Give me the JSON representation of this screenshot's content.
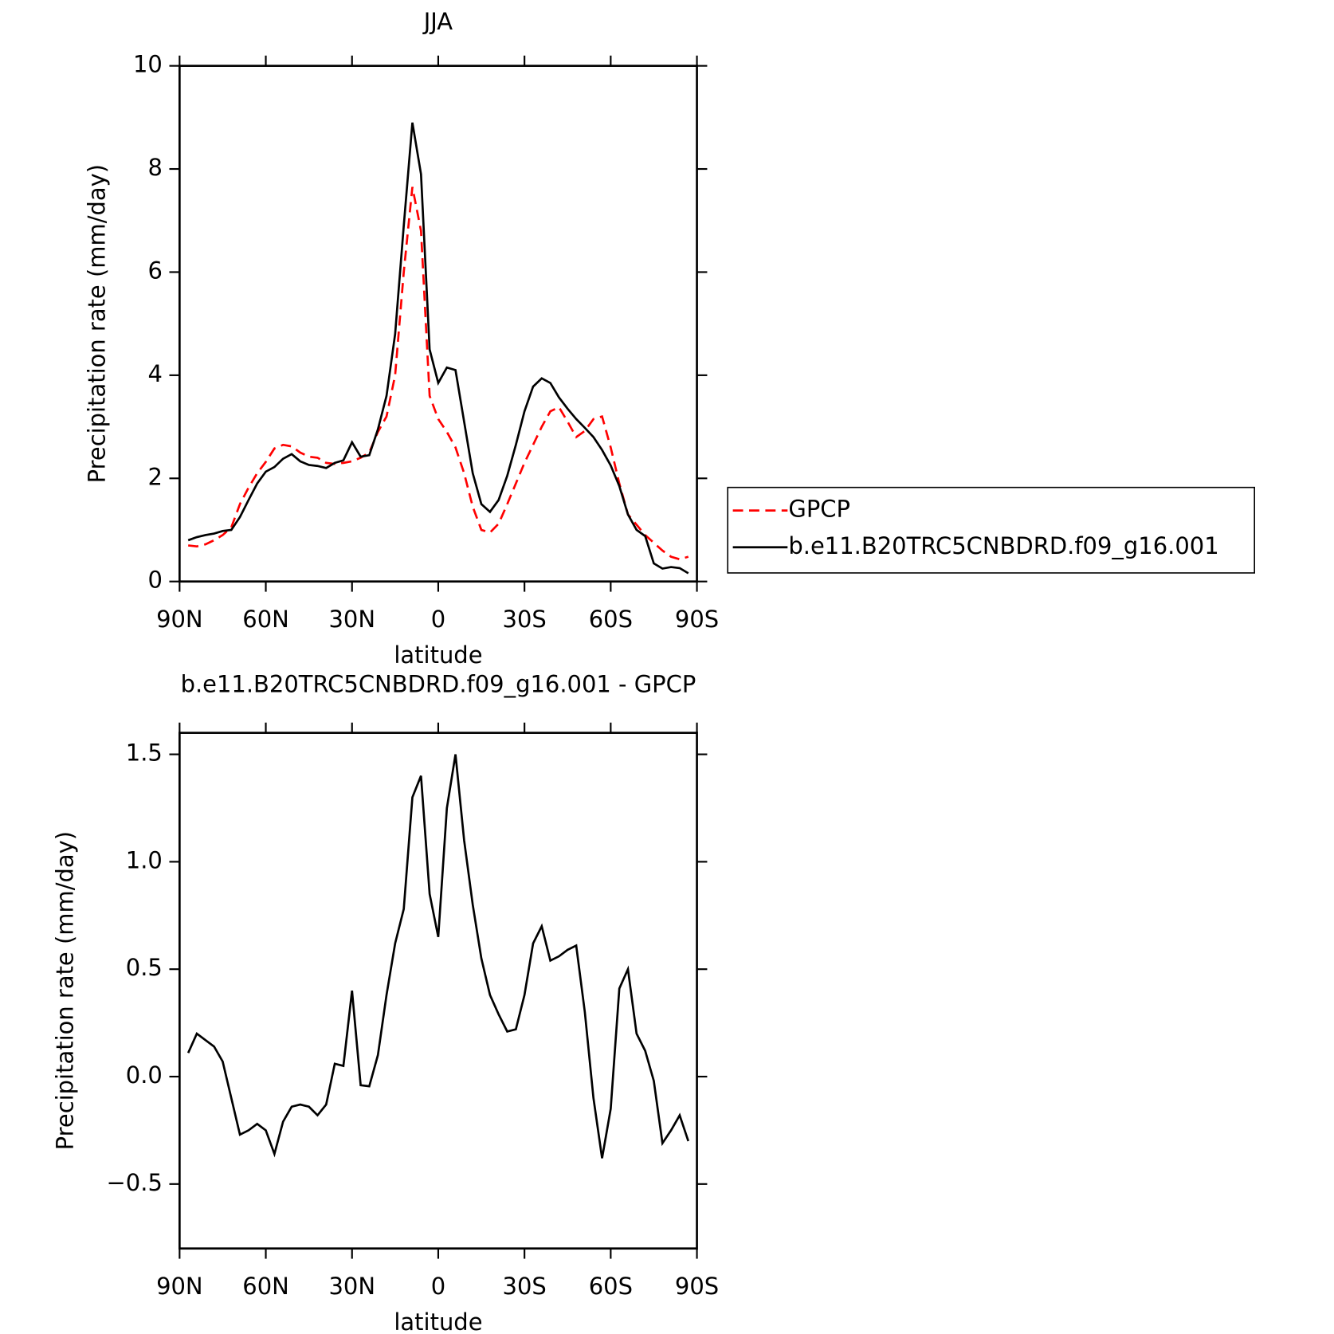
{
  "chart_data": [
    {
      "type": "line",
      "title": "JJA",
      "xlabel": "latitude",
      "ylabel": "Precipitation rate (mm/day)",
      "x": [
        87,
        84,
        81,
        78,
        75,
        72,
        69,
        66,
        63,
        60,
        57,
        54,
        51,
        48,
        45,
        42,
        39,
        36,
        33,
        30,
        27,
        24,
        21,
        18,
        15,
        12,
        9,
        6,
        3,
        0,
        -3,
        -6,
        -9,
        -12,
        -15,
        -18,
        -21,
        -24,
        -27,
        -30,
        -33,
        -36,
        -39,
        -42,
        -45,
        -48,
        -51,
        -54,
        -57,
        -60,
        -63,
        -66,
        -69,
        -72,
        -75,
        -78,
        -81,
        -84,
        -87
      ],
      "series": [
        {
          "name": "GPCP",
          "color": "#ff0000",
          "dashed": true,
          "values": [
            0.7,
            0.68,
            0.72,
            0.8,
            0.9,
            1.05,
            1.5,
            1.82,
            2.1,
            2.32,
            2.58,
            2.65,
            2.62,
            2.5,
            2.42,
            2.4,
            2.3,
            2.28,
            2.3,
            2.33,
            2.4,
            2.5,
            2.9,
            3.2,
            4.0,
            6.0,
            7.65,
            6.8,
            3.6,
            3.15,
            2.9,
            2.6,
            2.1,
            1.45,
            1.0,
            0.95,
            1.12,
            1.5,
            1.9,
            2.3,
            2.65,
            3.0,
            3.3,
            3.38,
            3.1,
            2.8,
            2.92,
            3.15,
            3.2,
            2.6,
            1.9,
            1.3,
            1.1,
            0.9,
            0.75,
            0.6,
            0.48,
            0.43,
            0.48
          ]
        },
        {
          "name": "b.e11.B20TRC5CNBDRD.f09_g16.001",
          "color": "#000000",
          "dashed": false,
          "values": [
            0.8,
            0.86,
            0.9,
            0.93,
            0.98,
            1.0,
            1.25,
            1.58,
            1.9,
            2.13,
            2.22,
            2.38,
            2.47,
            2.33,
            2.26,
            2.24,
            2.2,
            2.3,
            2.35,
            2.7,
            2.42,
            2.45,
            2.95,
            3.6,
            4.8,
            6.9,
            8.9,
            7.9,
            4.5,
            3.85,
            4.15,
            4.1,
            3.1,
            2.1,
            1.5,
            1.35,
            1.58,
            2.05,
            2.65,
            3.3,
            3.78,
            3.94,
            3.85,
            3.57,
            3.35,
            3.15,
            2.98,
            2.8,
            2.55,
            2.25,
            1.85,
            1.3,
            1.0,
            0.88,
            0.35,
            0.25,
            0.28,
            0.26,
            0.16
          ]
        }
      ],
      "xlim": [
        90,
        -90
      ],
      "xticks": [
        {
          "value": 90,
          "label": "90N"
        },
        {
          "value": 60,
          "label": "60N"
        },
        {
          "value": 30,
          "label": "30N"
        },
        0,
        {
          "value": -30,
          "label": "30S"
        },
        {
          "value": -60,
          "label": "60S"
        },
        {
          "value": -90,
          "label": "90S"
        }
      ],
      "ylim": [
        0,
        10
      ],
      "yticks": [
        0,
        2,
        4,
        6,
        8,
        10
      ],
      "legend": "right"
    },
    {
      "type": "line",
      "title": "b.e11.B20TRC5CNBDRD.f09_g16.001 - GPCP",
      "xlabel": "latitude",
      "ylabel": "Precipitation rate (mm/day)",
      "x": [
        87,
        84,
        81,
        78,
        75,
        72,
        69,
        66,
        63,
        60,
        57,
        54,
        51,
        48,
        45,
        42,
        39,
        36,
        33,
        30,
        27,
        24,
        21,
        18,
        15,
        12,
        9,
        6,
        3,
        0,
        -3,
        -6,
        -9,
        -12,
        -15,
        -18,
        -21,
        -24,
        -27,
        -30,
        -33,
        -36,
        -39,
        -42,
        -45,
        -48,
        -51,
        -54,
        -57,
        -60,
        -63,
        -66,
        -69,
        -72,
        -75,
        -78,
        -81,
        -84,
        -87
      ],
      "values": [
        0.11,
        0.2,
        0.17,
        0.14,
        0.07,
        -0.1,
        -0.27,
        -0.25,
        -0.22,
        -0.25,
        -0.36,
        -0.21,
        -0.14,
        -0.13,
        -0.14,
        -0.18,
        -0.13,
        0.06,
        0.05,
        0.4,
        -0.04,
        -0.045,
        0.1,
        0.38,
        0.62,
        0.78,
        1.3,
        1.4,
        0.85,
        0.65,
        1.25,
        1.5,
        1.1,
        0.8,
        0.55,
        0.38,
        0.29,
        0.21,
        0.22,
        0.38,
        0.62,
        0.7,
        0.54,
        0.56,
        0.59,
        0.61,
        0.3,
        -0.1,
        -0.38,
        -0.15,
        0.41,
        0.5,
        0.2,
        0.12,
        -0.02,
        -0.31,
        -0.25,
        -0.18,
        -0.3
      ],
      "color": "#000000",
      "xlim": [
        90,
        -90
      ],
      "xticks": [
        {
          "value": 90,
          "label": "90N"
        },
        {
          "value": 60,
          "label": "60N"
        },
        {
          "value": 30,
          "label": "30N"
        },
        0,
        {
          "value": -30,
          "label": "30S"
        },
        {
          "value": -60,
          "label": "60S"
        },
        {
          "value": -90,
          "label": "90S"
        }
      ],
      "ylim": [
        -0.8,
        1.6
      ],
      "yticks": [
        {
          "value": -0.5,
          "label": "−0.5"
        },
        {
          "value": 0,
          "label": "0.0"
        },
        0.5,
        {
          "value": 1,
          "label": "1.0"
        },
        1.5
      ]
    }
  ]
}
